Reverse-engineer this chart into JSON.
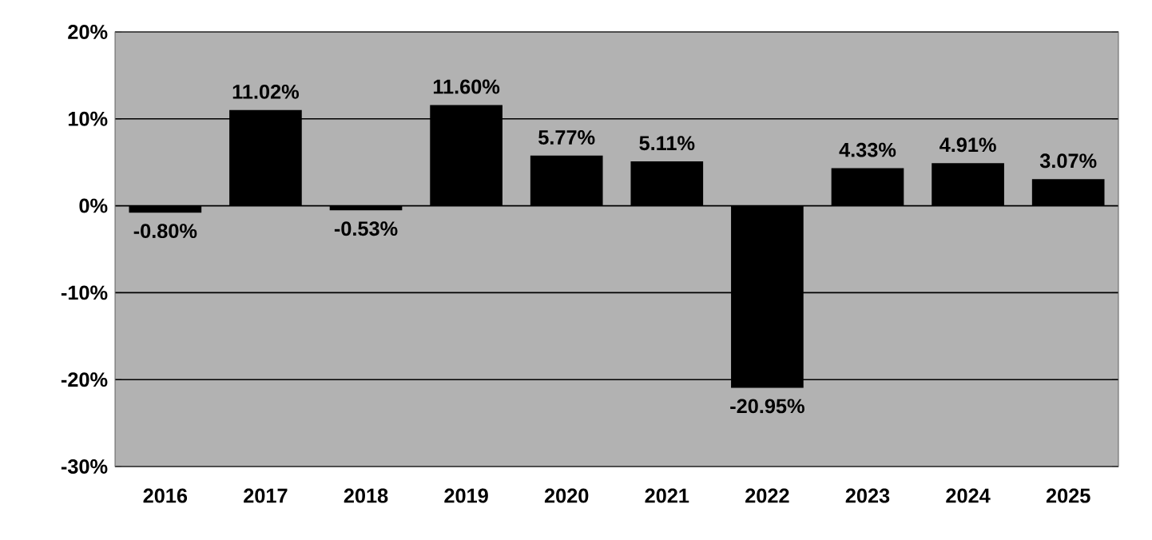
{
  "chart_data": {
    "type": "bar",
    "categories": [
      "2016",
      "2017",
      "2018",
      "2019",
      "2020",
      "2021",
      "2022",
      "2023",
      "2024",
      "2025"
    ],
    "values": [
      -0.8,
      11.02,
      -0.53,
      11.6,
      5.77,
      5.11,
      -20.95,
      4.33,
      4.91,
      3.07
    ],
    "value_labels": [
      "-0.80%",
      "11.02%",
      "-0.53%",
      "11.60%",
      "5.77%",
      "5.11%",
      "-20.95%",
      "4.33%",
      "4.91%",
      "3.07%"
    ],
    "color": "#000000",
    "ylim": [
      -30,
      20
    ],
    "yticks": [
      {
        "value": -30,
        "label": "-30%"
      },
      {
        "value": -20,
        "label": "-20%"
      },
      {
        "value": -10,
        "label": "-10%"
      },
      {
        "value": 0,
        "label": "0%"
      },
      {
        "value": 10,
        "label": "10%"
      },
      {
        "value": 20,
        "label": "20%"
      }
    ],
    "grid": "y"
  }
}
